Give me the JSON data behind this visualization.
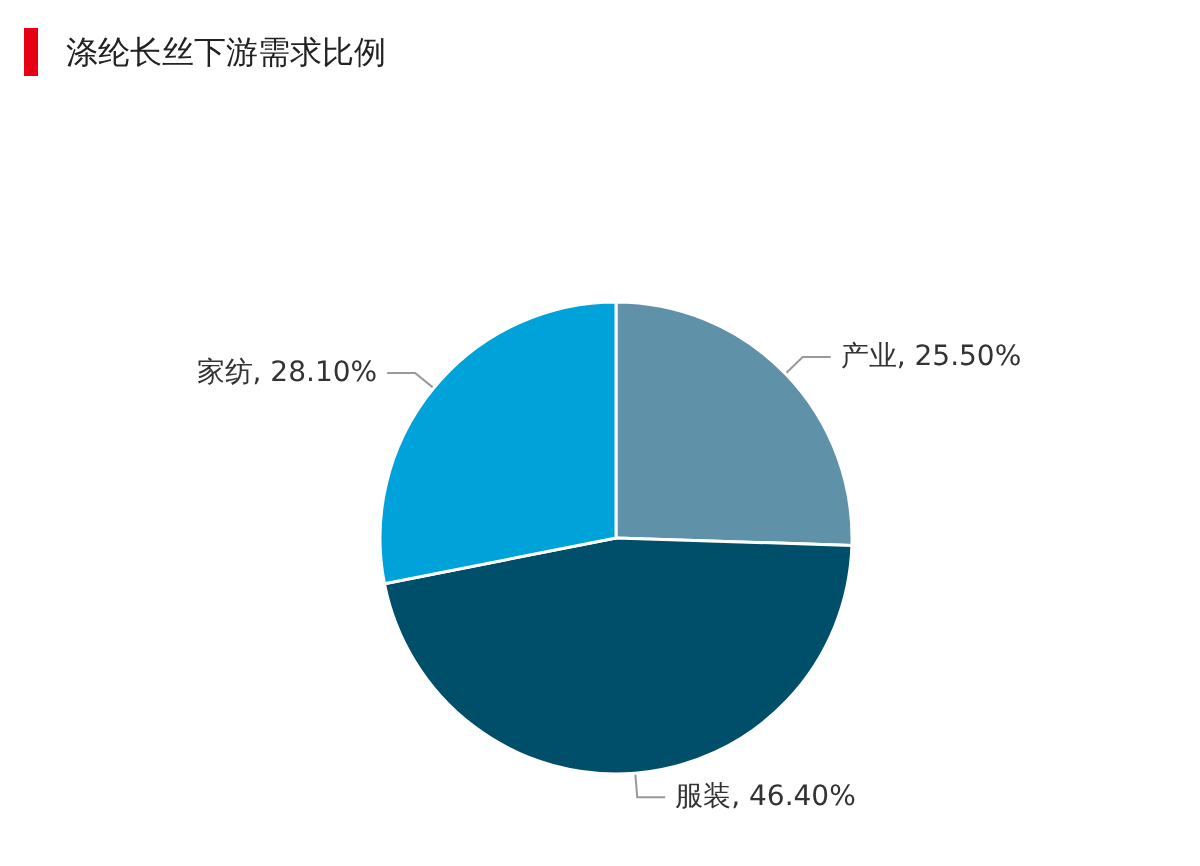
{
  "chart_data": {
    "type": "pie",
    "title": "涤纶长丝下游需求比例",
    "categories": [
      "产业",
      "服装",
      "家纺"
    ],
    "values": [
      25.5,
      46.4,
      28.1
    ],
    "value_labels": [
      "25.50%",
      "46.40%",
      "28.10%"
    ],
    "colors": [
      "#5f91a8",
      "#004f6a",
      "#00a2da"
    ],
    "legend": false
  }
}
